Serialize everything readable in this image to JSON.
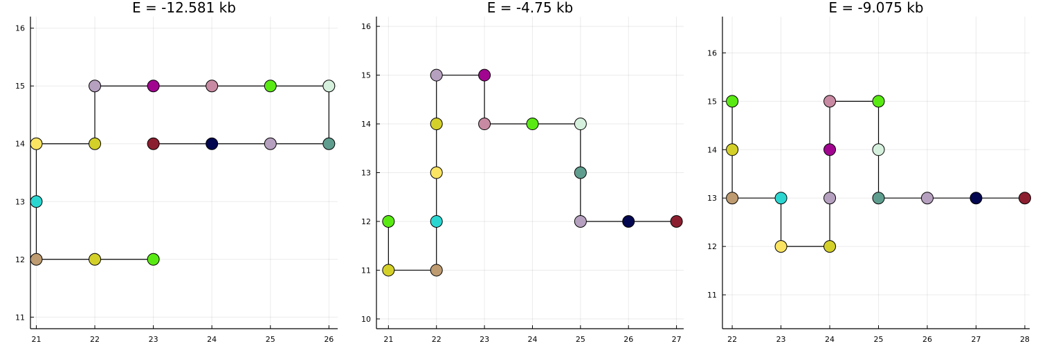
{
  "chart_data": [
    {
      "type": "line",
      "title": "E = -12.581 kb",
      "xlim": [
        20.9,
        26.15
      ],
      "ylim": [
        10.8,
        16.2
      ],
      "xticks": [
        21,
        22,
        23,
        24,
        25,
        26
      ],
      "yticks": [
        11,
        12,
        13,
        14,
        15,
        16
      ],
      "grid": true,
      "series": [
        {
          "x": [
            23,
            22,
            21,
            21,
            21,
            22,
            22,
            23,
            24,
            25,
            26,
            26,
            25,
            24,
            23
          ],
          "y": [
            12,
            12,
            12,
            13,
            14,
            14,
            15,
            15,
            15,
            15,
            15,
            14,
            14,
            14,
            14
          ],
          "colors": [
            "#5aea13",
            "#d4d02a",
            "#be9b70",
            "#2bd6d1",
            "#fbe462",
            "#d4d02a",
            "#b6a0bf",
            "#a10590",
            "#c88aa2",
            "#5aea13",
            "#d5f0dc",
            "#5f9e8f",
            "#b6a0bf",
            "#030750",
            "#8b1f30"
          ]
        }
      ]
    },
    {
      "type": "line",
      "title": "E = -4.75 kb",
      "xlim": [
        20.75,
        27.15
      ],
      "ylim": [
        9.8,
        16.2
      ],
      "xticks": [
        21,
        22,
        23,
        24,
        25,
        26,
        27
      ],
      "yticks": [
        10,
        11,
        12,
        13,
        14,
        15,
        16
      ],
      "grid": true,
      "series": [
        {
          "x": [
            21,
            21,
            22,
            22,
            22,
            22,
            22,
            23,
            23,
            24,
            25,
            25,
            25,
            26,
            27
          ],
          "y": [
            12,
            11,
            11,
            12,
            13,
            14,
            15,
            15,
            14,
            14,
            14,
            13,
            12,
            12,
            12
          ],
          "colors": [
            "#5aea13",
            "#d4d02a",
            "#be9b70",
            "#2bd6d1",
            "#fbe462",
            "#d4d02a",
            "#b6a0bf",
            "#a10590",
            "#c88aa2",
            "#5aea13",
            "#d5f0dc",
            "#5f9e8f",
            "#b6a0bf",
            "#030750",
            "#8b1f30"
          ]
        }
      ]
    },
    {
      "type": "line",
      "title": "E = -9.075 kb",
      "xlim": [
        21.8,
        28.1
      ],
      "ylim": [
        10.3,
        16.75
      ],
      "xticks": [
        22,
        23,
        24,
        25,
        26,
        27,
        28
      ],
      "yticks": [
        11,
        12,
        13,
        14,
        15,
        16
      ],
      "grid": true,
      "series": [
        {
          "x": [
            22,
            22,
            22,
            23,
            23,
            24,
            24,
            24,
            24,
            25,
            25,
            25,
            26,
            27,
            28
          ],
          "y": [
            15,
            14,
            13,
            13,
            12,
            12,
            13,
            14,
            15,
            15,
            14,
            13,
            13,
            13,
            13
          ],
          "colors": [
            "#5aea13",
            "#d4d02a",
            "#be9b70",
            "#2bd6d1",
            "#fbe462",
            "#d4d02a",
            "#b6a0bf",
            "#a10590",
            "#c88aa2",
            "#5aea13",
            "#d5f0dc",
            "#5f9e8f",
            "#b6a0bf",
            "#030750",
            "#8b1f30"
          ]
        }
      ]
    }
  ]
}
